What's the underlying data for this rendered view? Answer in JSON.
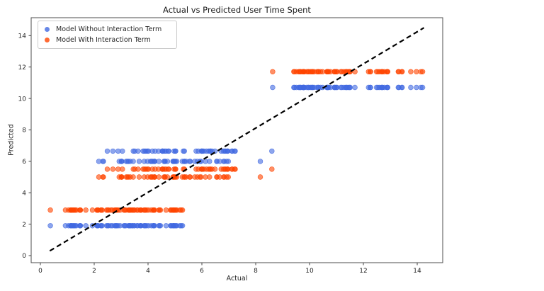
{
  "chart_data": {
    "type": "scatter",
    "title": "Actual vs Predicted User Time Spent",
    "xlabel": "Actual",
    "ylabel": "Predicted",
    "xlim": [
      -0.342,
      14.947
    ],
    "ylim": [
      -0.45,
      15.14
    ],
    "xticks": [
      0,
      2,
      4,
      6,
      8,
      10,
      12,
      14
    ],
    "yticks": [
      0,
      2,
      4,
      6,
      8,
      10,
      12,
      14
    ],
    "grid": false,
    "marker": {
      "shape": "circle",
      "radius": 3.4,
      "fill_opacity": 0.6
    },
    "legend_position": "upper-left",
    "series": [
      {
        "key": "without",
        "name": "Model Without Interaction Term",
        "color": "#4169e1"
      },
      {
        "key": "with",
        "name": "Model With Interaction Term",
        "color": "#ff4500"
      }
    ],
    "groups": [
      {
        "comment": "low band",
        "actual_segments": [
          [
            0.37,
            0.37,
            1
          ],
          [
            0.76,
            2.1,
            16
          ],
          [
            2.1,
            5.1,
            60
          ],
          [
            5.15,
            5.32,
            3
          ]
        ],
        "predicted": {
          "without": 1.9,
          "with": 2.9
        }
      },
      {
        "comment": "mid band inner",
        "actual_segments": [
          [
            2.15,
            2.45,
            3
          ],
          [
            2.9,
            7.05,
            48
          ],
          [
            8.17,
            8.17,
            1
          ]
        ],
        "predicted": {
          "without": 6.0,
          "with": 5.0
        }
      },
      {
        "comment": "mid band outer",
        "actual_segments": [
          [
            2.45,
            3.1,
            4
          ],
          [
            3.4,
            7.5,
            46
          ],
          [
            8.6,
            8.6,
            1
          ]
        ],
        "predicted": {
          "without": 6.65,
          "with": 5.5
        }
      },
      {
        "comment": "high band",
        "actual_segments": [
          [
            8.63,
            8.63,
            1
          ],
          [
            9.4,
            13.05,
            60
          ],
          [
            13.28,
            13.62,
            4
          ],
          [
            13.76,
            13.76,
            1
          ],
          [
            13.97,
            14.22,
            3
          ]
        ],
        "predicted": {
          "without": 10.7,
          "with": 11.7
        }
      }
    ],
    "reference_line": {
      "style": "dashed",
      "color": "#000000",
      "from": [
        0.35,
        0.3
      ],
      "to": [
        14.25,
        14.5
      ]
    }
  }
}
